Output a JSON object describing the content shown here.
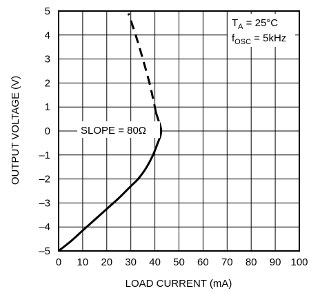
{
  "chart_data": {
    "type": "line",
    "title": "",
    "xlabel": "LOAD CURRENT (mA)",
    "ylabel": "OUTPUT VOLTAGE (V)",
    "xlim": [
      0,
      100
    ],
    "ylim": [
      -5,
      5
    ],
    "x_ticks": [
      "0",
      "10",
      "20",
      "30",
      "40",
      "50",
      "60",
      "70",
      "80",
      "90",
      "100"
    ],
    "y_ticks": [
      "–5",
      "–4",
      "–3",
      "–2",
      "–1",
      "0",
      "1",
      "2",
      "3",
      "4",
      "5"
    ],
    "grid": true,
    "series": [
      {
        "style": "solid",
        "points": [
          [
            0,
            -5
          ],
          [
            5,
            -4.6
          ],
          [
            10,
            -4.15
          ],
          [
            15,
            -3.7
          ],
          [
            20,
            -3.25
          ],
          [
            25,
            -2.8
          ],
          [
            30,
            -2.3
          ],
          [
            33,
            -2.0
          ],
          [
            36,
            -1.6
          ],
          [
            39,
            -1.05
          ],
          [
            41,
            -0.55
          ],
          [
            42.3,
            -0.2
          ],
          [
            42.6,
            0.0
          ],
          [
            42.3,
            0.2
          ],
          [
            41.3,
            0.5
          ],
          [
            40.5,
            0.75
          ]
        ]
      },
      {
        "style": "dashed",
        "points": [
          [
            40.5,
            0.75
          ],
          [
            38,
            1.9
          ],
          [
            35,
            3.0
          ],
          [
            32,
            4.0
          ],
          [
            29,
            4.9
          ]
        ]
      }
    ],
    "annotations": {
      "slope": "SLOPE = 80Ω",
      "ta_main": "T",
      "ta_sub": "A",
      "ta_value": " = 25°C",
      "fosc_main": "f",
      "fosc_sub": "OSC",
      "fosc_value": " = 5kHz"
    }
  }
}
